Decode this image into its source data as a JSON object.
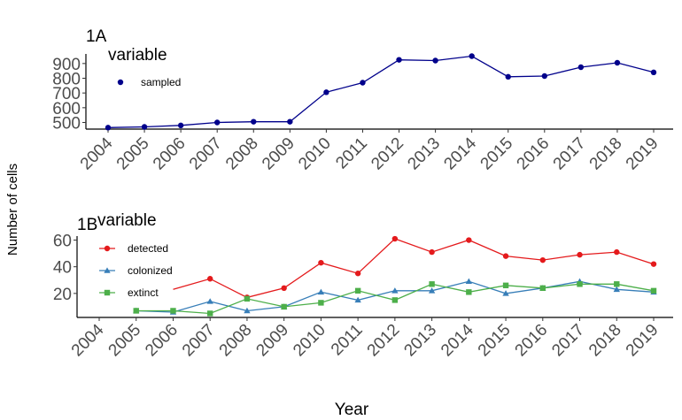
{
  "figure": {
    "ylabel": "Number of cells",
    "xlabel": "Year"
  },
  "chart_data": [
    {
      "type": "line",
      "panel_tag": "1A",
      "legend_title": "variable",
      "x": [
        2004,
        2005,
        2006,
        2007,
        2008,
        2009,
        2010,
        2011,
        2012,
        2013,
        2014,
        2015,
        2016,
        2017,
        2018,
        2019
      ],
      "categories": [
        "2004",
        "2005",
        "2006",
        "2007",
        "2008",
        "2009",
        "2010",
        "2011",
        "2012",
        "2013",
        "2014",
        "2015",
        "2016",
        "2017",
        "2018",
        "2019"
      ],
      "ylim": [
        455,
        965
      ],
      "yticks": [
        500,
        600,
        700,
        800,
        900
      ],
      "grid": false,
      "legend_position": "top-left",
      "series": [
        {
          "name": "sampled",
          "color": "#00008b",
          "marker": "circle",
          "values": [
            465,
            470,
            480,
            500,
            505,
            505,
            705,
            770,
            925,
            920,
            950,
            810,
            815,
            875,
            905,
            840
          ]
        }
      ]
    },
    {
      "type": "line",
      "panel_tag": "1B",
      "legend_title": "variable",
      "x": [
        2004,
        2005,
        2006,
        2007,
        2008,
        2009,
        2010,
        2011,
        2012,
        2013,
        2014,
        2015,
        2016,
        2017,
        2018,
        2019
      ],
      "categories": [
        "2004",
        "2005",
        "2006",
        "2007",
        "2008",
        "2009",
        "2010",
        "2011",
        "2012",
        "2013",
        "2014",
        "2015",
        "2016",
        "2017",
        "2018",
        "2019"
      ],
      "ylim": [
        2,
        63
      ],
      "yticks": [
        20,
        40,
        60
      ],
      "grid": false,
      "legend_position": "top-left",
      "series": [
        {
          "name": "detected",
          "color": "#e41a1c",
          "marker": "circle",
          "values": [
            null,
            null,
            23,
            31,
            17,
            24,
            43,
            35,
            61,
            51,
            60,
            48,
            45,
            49,
            51,
            42
          ]
        },
        {
          "name": "colonized",
          "color": "#377eb8",
          "marker": "triangle",
          "values": [
            null,
            7,
            6,
            14,
            7,
            10,
            21,
            15,
            22,
            22,
            29,
            20,
            24,
            29,
            23,
            21
          ]
        },
        {
          "name": "extinct",
          "color": "#4daf4a",
          "marker": "square",
          "values": [
            null,
            7,
            7,
            5,
            16,
            10,
            13,
            22,
            15,
            27,
            21,
            26,
            24,
            27,
            27,
            22
          ]
        }
      ]
    }
  ]
}
